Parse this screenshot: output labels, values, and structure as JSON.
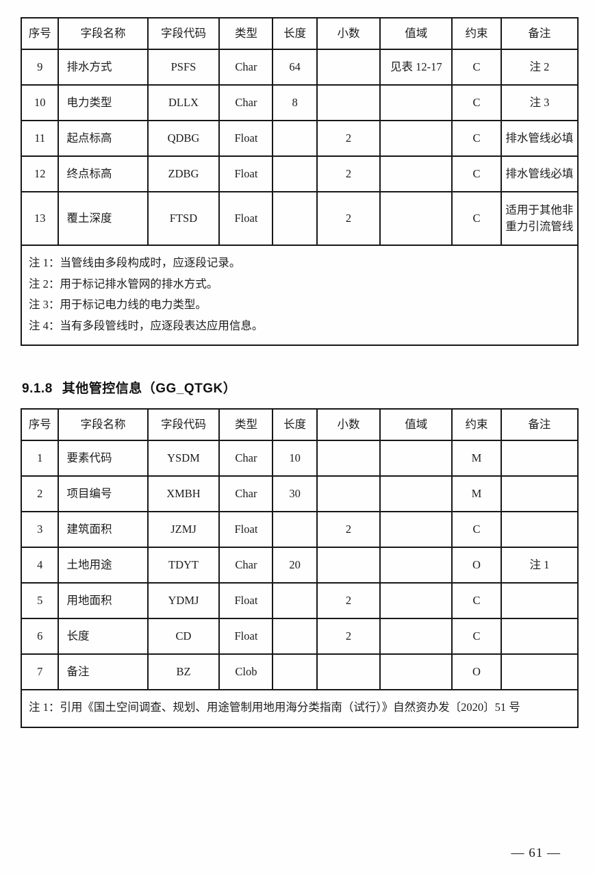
{
  "table1": {
    "headers": [
      "序号",
      "字段名称",
      "字段代码",
      "类型",
      "长度",
      "小数",
      "值域",
      "约束",
      "备注"
    ],
    "rows": [
      [
        "9",
        "排水方式",
        "PSFS",
        "Char",
        "64",
        "",
        "见表 12-17",
        "C",
        "注 2"
      ],
      [
        "10",
        "电力类型",
        "DLLX",
        "Char",
        "8",
        "",
        "",
        "C",
        "注 3"
      ],
      [
        "11",
        "起点标高",
        "QDBG",
        "Float",
        "",
        "2",
        "",
        "C",
        "排水管线必填"
      ],
      [
        "12",
        "终点标高",
        "ZDBG",
        "Float",
        "",
        "2",
        "",
        "C",
        "排水管线必填"
      ],
      [
        "13",
        "覆土深度",
        "FTSD",
        "Float",
        "",
        "2",
        "",
        "C",
        "适用于其他非重力引流管线"
      ]
    ],
    "notes": [
      "注 1：当管线由多段构成时，应逐段记录。",
      "注 2：用于标记排水管网的排水方式。",
      "注 3：用于标记电力线的电力类型。",
      "注 4：当有多段管线时，应逐段表达应用信息。"
    ]
  },
  "section": {
    "number": "9.1.8",
    "title": "其他管控信息（GG_QTGK）"
  },
  "table2": {
    "headers": [
      "序号",
      "字段名称",
      "字段代码",
      "类型",
      "长度",
      "小数",
      "值域",
      "约束",
      "备注"
    ],
    "rows": [
      [
        "1",
        "要素代码",
        "YSDM",
        "Char",
        "10",
        "",
        "",
        "M",
        ""
      ],
      [
        "2",
        "项目编号",
        "XMBH",
        "Char",
        "30",
        "",
        "",
        "M",
        ""
      ],
      [
        "3",
        "建筑面积",
        "JZMJ",
        "Float",
        "",
        "2",
        "",
        "C",
        ""
      ],
      [
        "4",
        "土地用途",
        "TDYT",
        "Char",
        "20",
        "",
        "",
        "O",
        "注 1"
      ],
      [
        "5",
        "用地面积",
        "YDMJ",
        "Float",
        "",
        "2",
        "",
        "C",
        ""
      ],
      [
        "6",
        "长度",
        "CD",
        "Float",
        "",
        "2",
        "",
        "C",
        ""
      ],
      [
        "7",
        "备注",
        "BZ",
        "Clob",
        "",
        "",
        "",
        "O",
        ""
      ]
    ],
    "notes": [
      "注 1：引用《国土空间调查、规划、用途管制用地用海分类指南（试行）》自然资办发〔2020〕51 号"
    ]
  },
  "footer": {
    "page_number": "— 61 —"
  }
}
